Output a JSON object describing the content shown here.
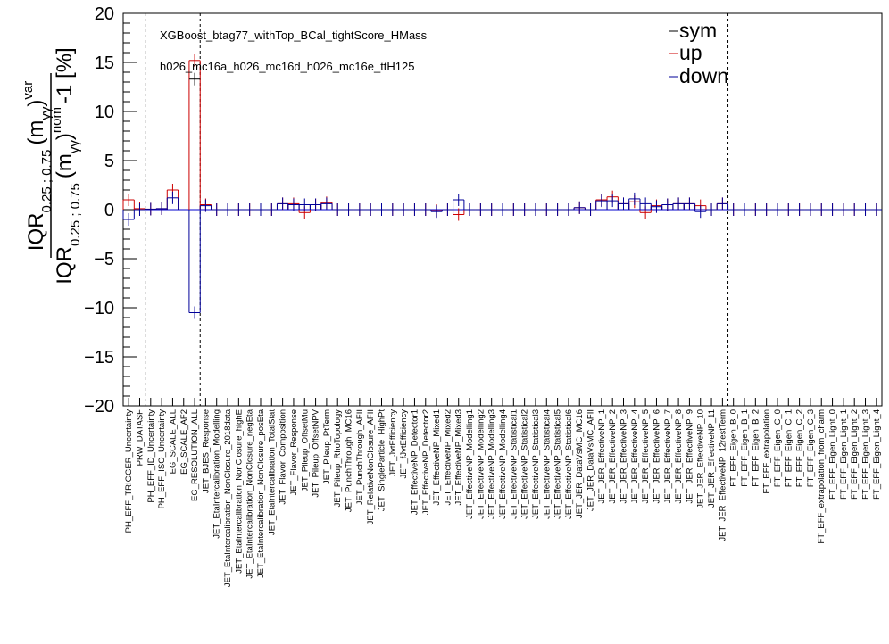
{
  "chart_data": {
    "type": "errorbar-histogram",
    "annotations": [
      "XGBoost_btag77_withTop_BCal_tightScore_HMass",
      "h026_mc16a_h026_mc16d_h026_mc16e_ttH125"
    ],
    "ylabel_parts": [
      "IQR",
      "0.25 ; 0.75",
      "(m",
      "γγ",
      ")",
      "var",
      "IQR",
      "0.25 ; 0.75",
      "(m",
      "γγ",
      ")",
      "nom",
      "-1 [%]"
    ],
    "ylim": [
      -20,
      20
    ],
    "yticks": [
      "−20",
      "−15",
      "−10",
      "−5",
      "0",
      "5",
      "10",
      "15",
      "20"
    ],
    "legend": [
      {
        "name": "sym",
        "color": "#000000"
      },
      {
        "name": "up",
        "color": "#cc0000"
      },
      {
        "name": "down",
        "color": "#000099"
      }
    ],
    "colors": {
      "sym": "#000000",
      "up": "#cc0000",
      "down": "#000099",
      "zero_line": "#0000cc"
    },
    "categories": [
      "PH_EFF_TRIGGER_Uncertainty",
      "PRW_DATASF",
      "PH_EFF_ID_Uncertainty",
      "PH_EFF_ISO_Uncertainty",
      "EG_SCALE_ALL",
      "EG_SCALE_AF2",
      "EG_RESOLUTION_ALL",
      "JET_BJES_Response",
      "JET_EtaIntercalibration_Modelling",
      "JET_EtaIntercalibration_NonClosure_2018data",
      "JET_EtaIntercalibration_NonClosure_highE",
      "JET_EtaIntercalibration_NonClosure_negEta",
      "JET_EtaIntercalibration_NonClosure_posEta",
      "JET_EtaIntercalibration_TotalStat",
      "JET_Flavor_Composition",
      "JET_Flavor_Response",
      "JET_Pileup_OffsetMu",
      "JET_Pileup_OffsetNPV",
      "JET_Pileup_PtTerm",
      "JET_Pileup_RhoTopology",
      "JET_PunchThrough_MC16",
      "JET_PunchThrough_AFII",
      "JET_RelativeNonClosure_AFII",
      "JET_SingleParticle_HighPt",
      "JET_JvtEfficiency",
      "JET_fJvtEfficiency",
      "JET_EffectiveNP_Detector1",
      "JET_EffectiveNP_Detector2",
      "JET_EffectiveNP_Mixed1",
      "JET_EffectiveNP_Mixed2",
      "JET_EffectiveNP_Mixed3",
      "JET_EffectiveNP_Modelling1",
      "JET_EffectiveNP_Modelling2",
      "JET_EffectiveNP_Modelling3",
      "JET_EffectiveNP_Modelling4",
      "JET_EffectiveNP_Statistical1",
      "JET_EffectiveNP_Statistical2",
      "JET_EffectiveNP_Statistical3",
      "JET_EffectiveNP_Statistical4",
      "JET_EffectiveNP_Statistical5",
      "JET_EffectiveNP_Statistical6",
      "JET_JER_DataVsMC_MC16",
      "JET_JER_DataVsMC_AFII",
      "JET_JER_EffectiveNP_1",
      "JET_JER_EffectiveNP_2",
      "JET_JER_EffectiveNP_3",
      "JET_JER_EffectiveNP_4",
      "JET_JER_EffectiveNP_5",
      "JET_JER_EffectiveNP_6",
      "JET_JER_EffectiveNP_7",
      "JET_JER_EffectiveNP_8",
      "JET_JER_EffectiveNP_9",
      "JET_JER_EffectiveNP_10",
      "JET_JER_EffectiveNP_11",
      "JET_JER_EffectiveNP_12restTerm",
      "FT_EFF_Eigen_B_0",
      "FT_EFF_Eigen_B_1",
      "FT_EFF_Eigen_B_2",
      "FT_EFF_extrapolation",
      "FT_EFF_Eigen_C_0",
      "FT_EFF_Eigen_C_1",
      "FT_EFF_Eigen_C_2",
      "FT_EFF_Eigen_C_3",
      "FT_EFF_extrapolation_from_charm",
      "FT_EFF_Eigen_Light_0",
      "FT_EFF_Eigen_Light_1",
      "FT_EFF_Eigen_Light_2",
      "FT_EFF_Eigen_Light_3",
      "FT_EFF_Eigen_Light_4"
    ],
    "series": [
      {
        "name": "up",
        "values": [
          1.0,
          0.1,
          0.05,
          0.1,
          2.0,
          null,
          15.2,
          0.5,
          0,
          0,
          0,
          0,
          0,
          0,
          0.6,
          0.6,
          -0.3,
          0.5,
          0.7,
          0,
          0,
          0,
          0,
          0,
          0,
          0,
          0,
          0,
          -0.1,
          0,
          -0.5,
          0,
          0,
          0,
          0,
          0,
          0,
          0,
          0,
          0,
          0,
          0.2,
          0,
          1.0,
          1.3,
          0.6,
          0.8,
          -0.3,
          0.4,
          0.5,
          0.6,
          0.6,
          0.4,
          0,
          0.6,
          0,
          0,
          0,
          0,
          0,
          0,
          0,
          0,
          0,
          0,
          0,
          0,
          0,
          0
        ]
      },
      {
        "name": "down",
        "values": [
          -1.0,
          0.0,
          0.05,
          0.1,
          1.2,
          null,
          -10.5,
          0.4,
          0,
          0,
          0,
          0,
          0,
          0,
          0.6,
          0.5,
          0.5,
          0.5,
          0.6,
          0,
          0,
          0,
          0,
          0,
          0,
          0,
          0,
          0,
          -0.2,
          0,
          1.0,
          0,
          0,
          0,
          0,
          0,
          0,
          0,
          0,
          0,
          0,
          0.2,
          0,
          0.9,
          0.9,
          0.6,
          1.1,
          0.6,
          0.3,
          0.5,
          0.6,
          0.6,
          -0.2,
          0,
          0.6,
          0,
          0,
          0,
          0,
          0,
          0,
          0,
          0,
          0,
          0,
          0,
          0,
          0,
          0
        ]
      },
      {
        "name": "sym",
        "values": [
          null,
          null,
          null,
          null,
          null,
          null,
          13.3,
          null,
          null,
          null,
          null,
          null,
          null,
          null,
          null,
          null,
          null,
          null,
          null,
          null,
          null,
          null,
          null,
          null,
          null,
          null,
          null,
          null,
          null,
          null,
          null,
          null,
          null,
          null,
          null,
          null,
          null,
          null,
          null,
          null,
          null,
          null,
          null,
          null,
          null,
          null,
          null,
          null,
          null,
          null,
          null,
          null,
          null,
          null,
          null,
          null,
          null,
          null,
          null,
          null,
          null,
          null,
          null,
          null,
          null,
          null,
          null,
          null,
          null
        ]
      }
    ],
    "group_boundaries_after": [
      1,
      6,
      54
    ],
    "grid": false,
    "legend_position": "top-right"
  }
}
